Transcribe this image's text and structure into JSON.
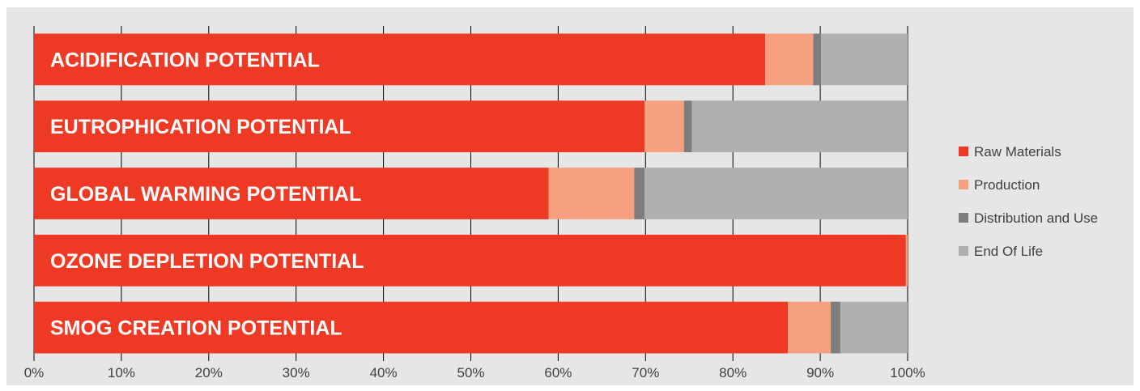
{
  "chart_data": {
    "type": "bar",
    "orientation": "horizontal",
    "stacked": true,
    "percent_scale": true,
    "title": "",
    "xlabel": "",
    "ylabel": "",
    "xlim": [
      0,
      100
    ],
    "x_ticks": [
      "0%",
      "10%",
      "20%",
      "30%",
      "40%",
      "50%",
      "60%",
      "70%",
      "80%",
      "90%",
      "100%"
    ],
    "grid": "vertical",
    "legend_position": "right",
    "categories": [
      "ACIDIFICATION POTENTIAL",
      "EUTROPHICATION POTENTIAL",
      "GLOBAL WARMING POTENTIAL",
      "OZONE DEPLETION POTENTIAL",
      "SMOG CREATION POTENTIAL"
    ],
    "series": [
      {
        "name": "Raw Materials",
        "color": "#ee3a24",
        "values": [
          83.7,
          69.9,
          58.9,
          99.8,
          86.3
        ]
      },
      {
        "name": "Production",
        "color": "#f6a07f",
        "values": [
          5.5,
          4.5,
          9.8,
          0.2,
          4.9
        ]
      },
      {
        "name": "Distribution and Use",
        "color": "#7d7d7d",
        "values": [
          0.9,
          0.9,
          1.2,
          0,
          1.1
        ]
      },
      {
        "name": "End Of Life",
        "color": "#b0b0b0",
        "values": [
          9.9,
          24.7,
          30.1,
          0,
          7.7
        ]
      }
    ]
  }
}
